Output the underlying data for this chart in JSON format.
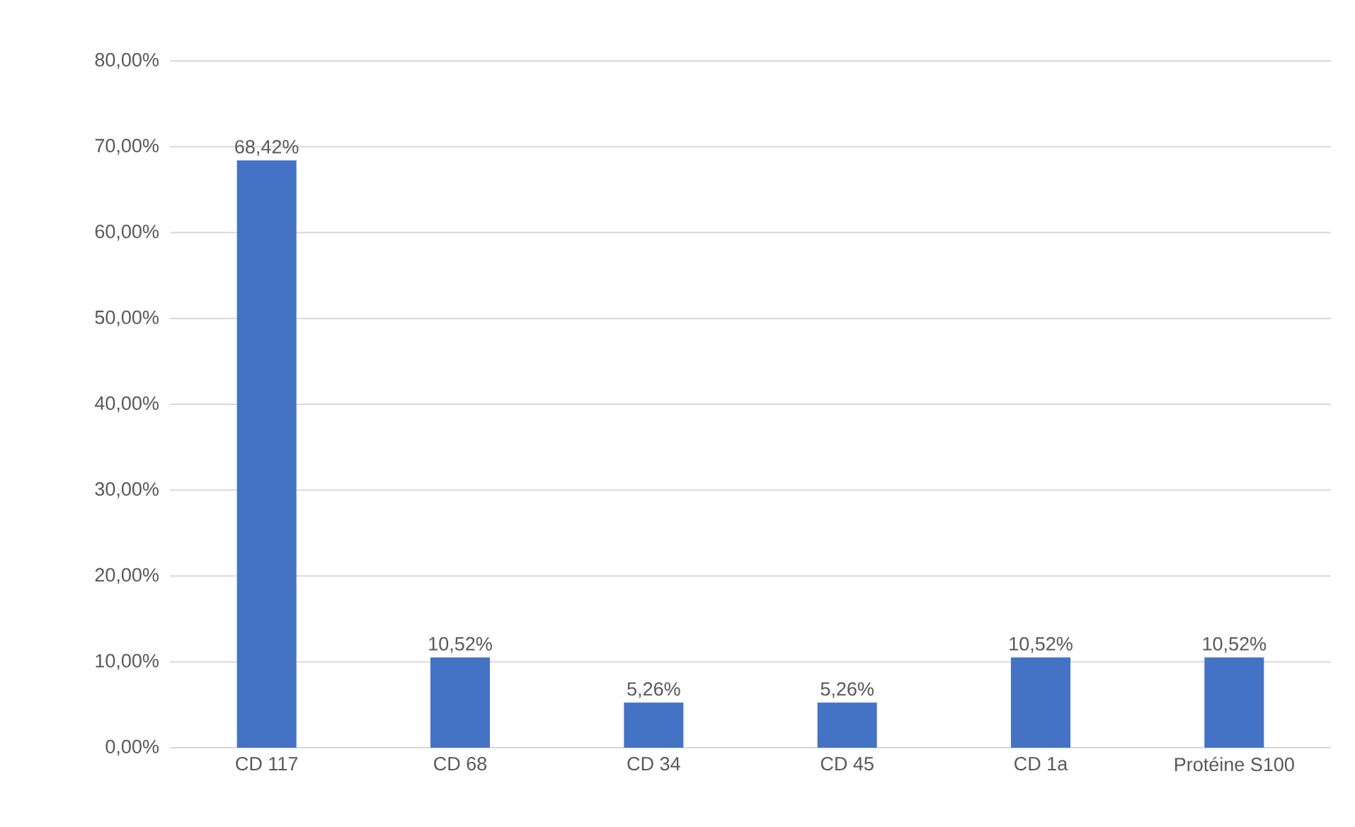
{
  "chart_data": {
    "type": "bar",
    "categories": [
      "CD 117",
      "CD 68",
      "CD 34",
      "CD 45",
      "CD 1a",
      "Protéine S100"
    ],
    "values": [
      68.42,
      10.52,
      5.26,
      5.26,
      10.52,
      10.52
    ],
    "value_labels": [
      "68,42%",
      "10,52%",
      "5,26%",
      "5,26%",
      "10,52%",
      "10,52%"
    ],
    "color": "#4472c4",
    "ylim": [
      0,
      80
    ],
    "yticks": [
      {
        "value": 0,
        "label": "0,00%"
      },
      {
        "value": 10,
        "label": "10,00%"
      },
      {
        "value": 20,
        "label": "20,00%"
      },
      {
        "value": 30,
        "label": "30,00%"
      },
      {
        "value": 40,
        "label": "40,00%"
      },
      {
        "value": 50,
        "label": "50,00%"
      },
      {
        "value": 60,
        "label": "60,00%"
      },
      {
        "value": 70,
        "label": "70,00%"
      },
      {
        "value": 80,
        "label": "80,00%"
      }
    ],
    "grid": "y"
  }
}
